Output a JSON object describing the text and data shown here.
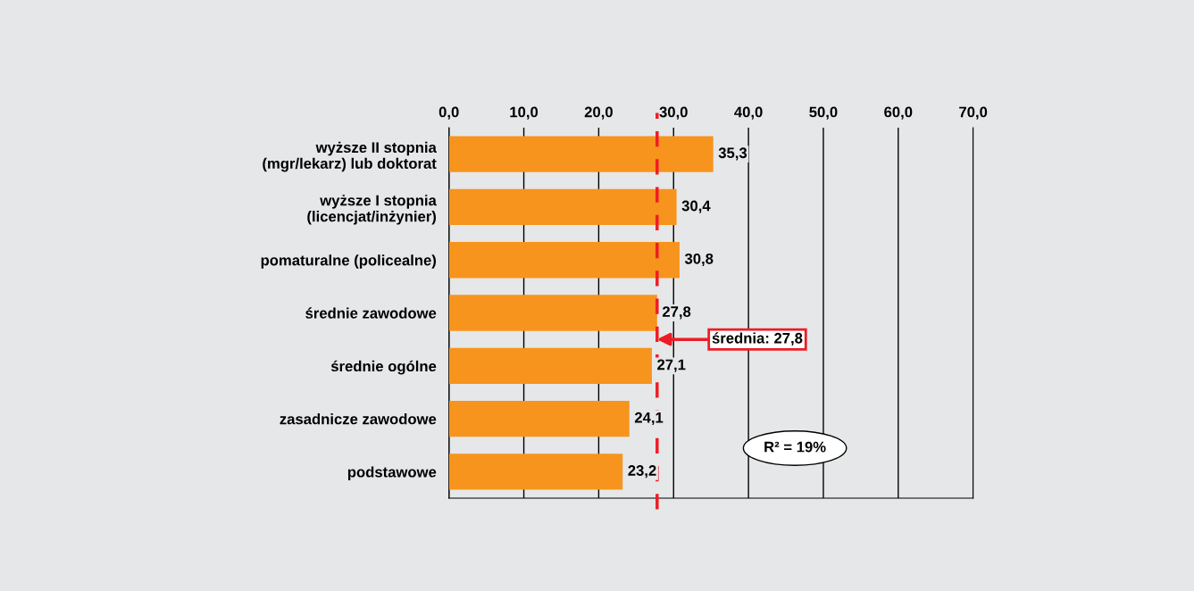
{
  "chart_data": {
    "type": "bar",
    "orientation": "horizontal",
    "categories": [
      "wyższe II stopnia\n(mgr/lekarz) lub doktorat",
      "wyższe I stopnia\n(licencjat/inżynier)",
      "pomaturalne (policealne)",
      "średnie zawodowe",
      "średnie ogólne",
      "zasadnicze zawodowe",
      "podstawowe"
    ],
    "values": [
      35.3,
      30.4,
      30.8,
      27.8,
      27.1,
      24.1,
      23.2
    ],
    "value_labels": [
      "35,3",
      "30,4",
      "30,8",
      "27,8",
      "27,1",
      "24,1",
      "23,2"
    ],
    "color": "#f7941d",
    "xlim": [
      0,
      70
    ],
    "xticks": [
      {
        "value": 0,
        "label": "0,0"
      },
      {
        "value": 10,
        "label": "10,0"
      },
      {
        "value": 20,
        "label": "20,0"
      },
      {
        "value": 30,
        "label": "30,0"
      },
      {
        "value": 40,
        "label": "40,0"
      },
      {
        "value": 50,
        "label": "50,0"
      },
      {
        "value": 60,
        "label": "60,0"
      },
      {
        "value": 70,
        "label": "70,0"
      }
    ],
    "grid": "x",
    "ref_lines": [
      {
        "axis": "x",
        "value": 27.8,
        "label": "średnia: 27,8",
        "color": "#ed1c24",
        "line_style": "dashed"
      }
    ],
    "annotations": [
      "R² = 19%"
    ]
  }
}
